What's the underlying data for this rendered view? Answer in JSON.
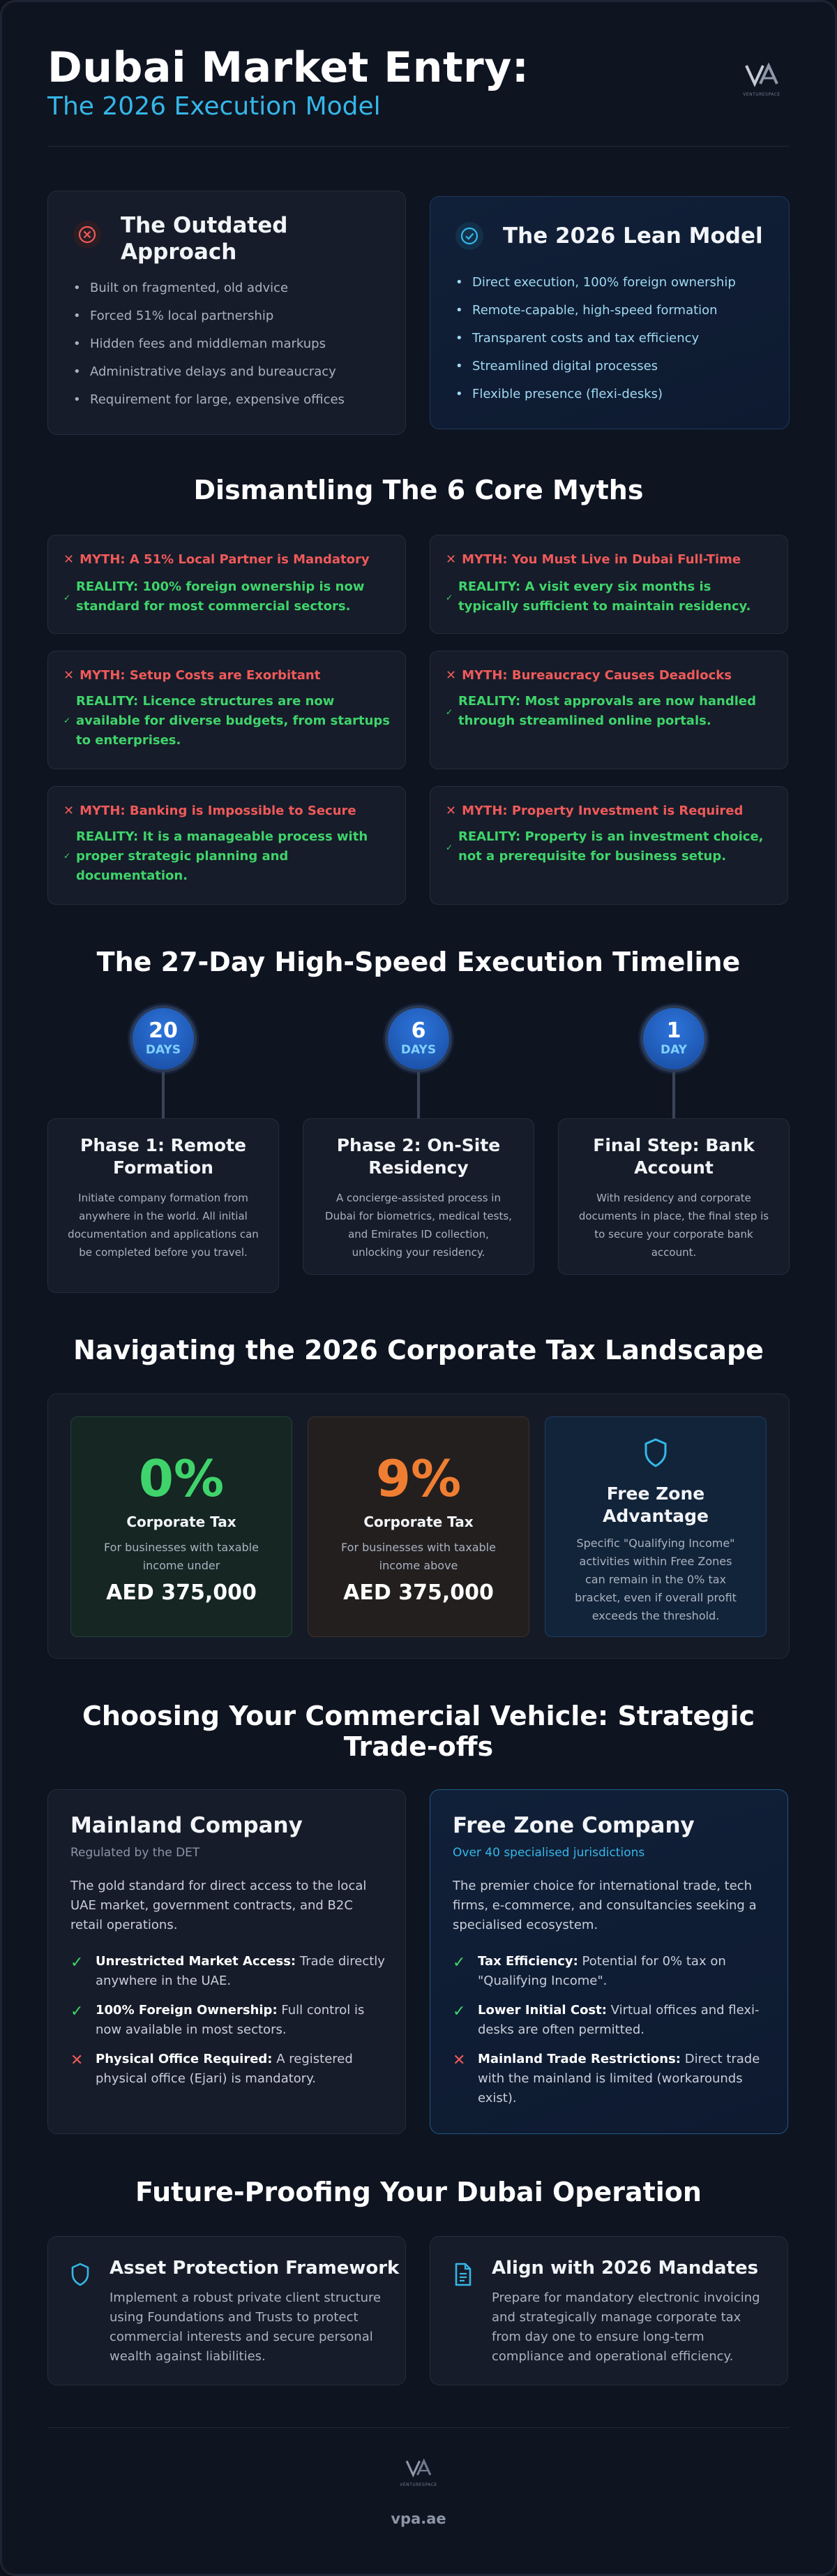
{
  "header": {
    "title": "Dubai Market Entry:",
    "subtitle": "The 2026 Execution Model",
    "logo_text": "VENTURESPACE"
  },
  "comparison": {
    "outdated": {
      "title": "The Outdated Approach",
      "icon": "x-circle-icon",
      "items": [
        "Built on fragmented, old advice",
        "Forced 51% local partnership",
        "Hidden fees and middleman markups",
        "Administrative delays and bureaucracy",
        "Requirement for large, expensive offices"
      ]
    },
    "lean": {
      "title": "The 2026 Lean Model",
      "icon": "check-circle-icon",
      "items": [
        "Direct execution, 100% foreign ownership",
        "Remote-capable, high-speed formation",
        "Transparent costs and tax efficiency",
        "Streamlined digital processes",
        "Flexible presence (flexi-desks)"
      ]
    }
  },
  "myths": {
    "title": "Dismantling The 6 Core Myths",
    "items": [
      {
        "myth": "MYTH: A 51% Local Partner is Mandatory",
        "reality": "REALITY: 100% foreign ownership is now standard for most commercial sectors."
      },
      {
        "myth": "MYTH: You Must Live in Dubai Full-Time",
        "reality": "REALITY: A visit every six months is typically sufficient to maintain residency."
      },
      {
        "myth": "MYTH: Setup Costs are Exorbitant",
        "reality": "REALITY: Licence structures are now available for diverse budgets, from startups to enterprises."
      },
      {
        "myth": "MYTH: Bureaucracy Causes Deadlocks",
        "reality": "REALITY: Most approvals are now handled through streamlined online portals."
      },
      {
        "myth": "MYTH: Banking is Impossible to Secure",
        "reality": "REALITY: It is a manageable process with proper strategic planning and documentation."
      },
      {
        "myth": "MYTH: Property Investment is Required",
        "reality": "REALITY: Property is an investment choice, not a prerequisite for business setup."
      }
    ]
  },
  "timeline": {
    "title": "The 27-Day High-Speed Execution Timeline",
    "phases": [
      {
        "days": "20",
        "unit": "DAYS",
        "title": "Phase 1: Remote Formation",
        "text": "Initiate company formation from anywhere in the world. All initial documentation and applications can be completed before you travel."
      },
      {
        "days": "6",
        "unit": "DAYS",
        "title": "Phase 2: On-Site Residency",
        "text": "A concierge-assisted process in Dubai for biometrics, medical tests, and Emirates ID collection, unlocking your residency."
      },
      {
        "days": "1",
        "unit": "DAY",
        "title": "Final Step: Bank Account",
        "text": "With residency and corporate documents in place, the final step is to secure your corporate bank account."
      }
    ]
  },
  "tax": {
    "title": "Navigating the 2026 Corporate Tax Landscape",
    "zero": {
      "pct": "0%",
      "label": "Corporate Tax",
      "note": "For businesses with taxable income under",
      "amount": "AED 375,000"
    },
    "nine": {
      "pct": "9%",
      "label": "Corporate Tax",
      "note": "For businesses with taxable income above",
      "amount": "AED 375,000"
    },
    "freezone": {
      "icon": "shield-icon",
      "title": "Free Zone Advantage",
      "text": "Specific \"Qualifying Income\" activities within Free Zones can remain in the 0% tax bracket, even if overall profit exceeds the threshold."
    },
    "colors": {
      "green": "#3fd46b",
      "orange": "#f07e32",
      "cyan": "#35b7e8"
    }
  },
  "vehicles": {
    "title": "Choosing Your Commercial Vehicle: Strategic Trade-offs",
    "mainland": {
      "title": "Mainland Company",
      "subtitle": "Regulated by the DET",
      "desc": "The gold standard for direct access to the local UAE market, government contracts, and B2C retail operations.",
      "features": [
        {
          "ok": true,
          "bold": "Unrestricted Market Access:",
          "text": " Trade directly anywhere in the UAE."
        },
        {
          "ok": true,
          "bold": "100% Foreign Ownership:",
          "text": " Full control is now available in most sectors."
        },
        {
          "ok": false,
          "bold": "Physical Office Required:",
          "text": " A registered physical office (Ejari) is mandatory."
        }
      ]
    },
    "freezone": {
      "title": "Free Zone Company",
      "subtitle": "Over 40 specialised jurisdictions",
      "desc": "The premier choice for international trade, tech firms, e-commerce, and consultancies seeking a specialised ecosystem.",
      "features": [
        {
          "ok": true,
          "bold": "Tax Efficiency:",
          "text": " Potential for 0% tax on \"Qualifying Income\"."
        },
        {
          "ok": true,
          "bold": "Lower Initial Cost:",
          "text": " Virtual offices and flexi-desks are often permitted."
        },
        {
          "ok": false,
          "bold": "Mainland Trade Restrictions:",
          "text": " Direct trade with the mainland is limited (workarounds exist)."
        }
      ]
    }
  },
  "future": {
    "title": "Future-Proofing Your Dubai Operation",
    "asset": {
      "icon": "shield-icon",
      "title": "Asset Protection Framework",
      "text": "Implement a robust private client structure using Foundations and Trusts to protect commercial interests and secure personal wealth against liabilities."
    },
    "mandates": {
      "icon": "document-icon",
      "title": "Align with 2026 Mandates",
      "text": "Prepare for mandatory electronic invoicing and strategically manage corporate tax from day one to ensure long-term compliance and operational efficiency."
    }
  },
  "footer": {
    "url": "vpa.ae"
  }
}
